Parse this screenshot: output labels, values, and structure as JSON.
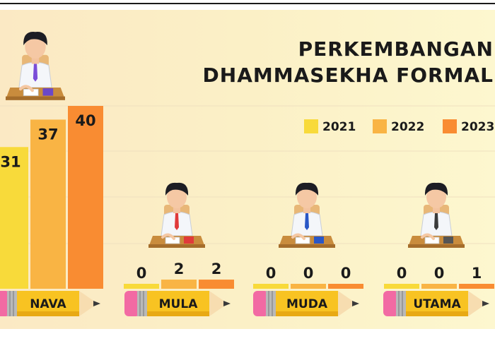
{
  "chart_data": {
    "type": "bar",
    "title_lines": [
      "PERKEMBANGAN",
      "DHAMMASEKHA FORMAL"
    ],
    "categories": [
      "NAVA",
      "MULA",
      "MUDA",
      "UTAMA"
    ],
    "series": [
      {
        "name": "2021",
        "values": [
          31,
          0,
          0,
          0
        ],
        "color": "#f8da3a"
      },
      {
        "name": "2022",
        "values": [
          37,
          2,
          0,
          0
        ],
        "color": "#f9b444"
      },
      {
        "name": "2023",
        "values": [
          40,
          2,
          0,
          1
        ],
        "color": "#f98c32"
      }
    ],
    "ylim": [
      0,
      40
    ],
    "grid": true,
    "legend_position": "top-right",
    "icon": "student-at-desk-icon",
    "category_marker": "pencil-icon"
  }
}
